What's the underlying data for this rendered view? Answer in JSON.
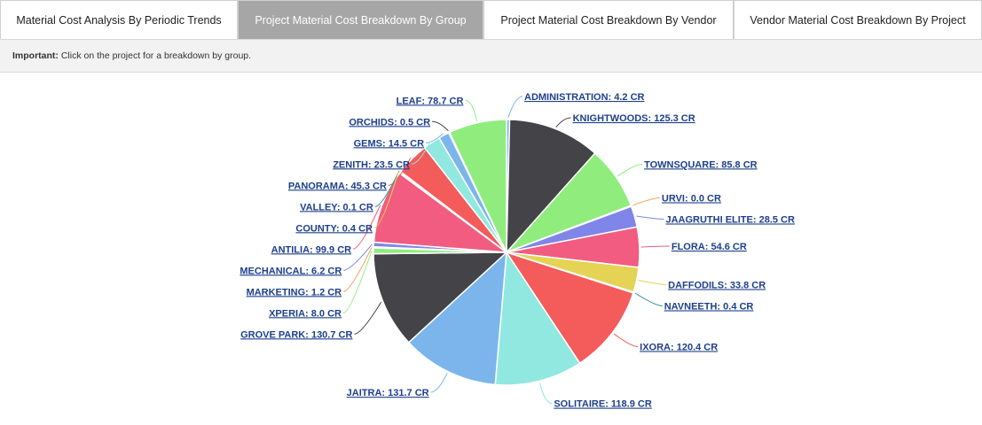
{
  "tabs": [
    {
      "label": "Material Cost Analysis By Periodic Trends",
      "active": false
    },
    {
      "label": "Project Material Cost Breakdown By Group",
      "active": true
    },
    {
      "label": "Project Material Cost Breakdown By Vendor",
      "active": false
    },
    {
      "label": "Vendor Material Cost Breakdown By Project",
      "active": false
    }
  ],
  "notice": {
    "strong": "Important:",
    "text": " Click on the project for a breakdown by group."
  },
  "chart_data": {
    "type": "pie",
    "title": "",
    "unit": "CR",
    "slices": [
      {
        "name": "ADMINISTRATION",
        "value": 4.2,
        "label": "ADMINISTRATION: 4.2 CR",
        "color": "#7cb5ec"
      },
      {
        "name": "KNIGHTWOODS",
        "value": 125.3,
        "label": "KNIGHTWOODS: 125.3 CR",
        "color": "#434348"
      },
      {
        "name": "TOWNSQUARE",
        "value": 85.8,
        "label": "TOWNSQUARE: 85.8 CR",
        "color": "#90ed7d"
      },
      {
        "name": "URVI",
        "value": 0.0,
        "label": "URVI: 0.0 CR",
        "color": "#f7a35c"
      },
      {
        "name": "JAAGRUTHI ELITE",
        "value": 28.5,
        "label": "JAAGRUTHI ELITE: 28.5 CR",
        "color": "#8085e9"
      },
      {
        "name": "FLORA",
        "value": 54.6,
        "label": "FLORA: 54.6 CR",
        "color": "#f15c80"
      },
      {
        "name": "DAFFODILS",
        "value": 33.8,
        "label": "DAFFODILS: 33.8 CR",
        "color": "#e4d354"
      },
      {
        "name": "NAVNEETH",
        "value": 0.4,
        "label": "NAVNEETH: 0.4 CR",
        "color": "#2b908f"
      },
      {
        "name": "IXORA",
        "value": 120.4,
        "label": "IXORA: 120.4 CR",
        "color": "#f45b5b"
      },
      {
        "name": "SOLITAIRE",
        "value": 118.9,
        "label": "SOLITAIRE: 118.9 CR",
        "color": "#91e8e1"
      },
      {
        "name": "JAITRA",
        "value": 131.7,
        "label": "JAITRA: 131.7 CR",
        "color": "#7cb5ec"
      },
      {
        "name": "GROVE PARK",
        "value": 130.7,
        "label": "GROVE PARK: 130.7 CR",
        "color": "#434348"
      },
      {
        "name": "XPERIA",
        "value": 8.0,
        "label": "XPERIA: 8.0 CR",
        "color": "#90ed7d"
      },
      {
        "name": "MARKETING",
        "value": 1.2,
        "label": "MARKETING: 1.2 CR",
        "color": "#f7a35c"
      },
      {
        "name": "MECHANICAL",
        "value": 6.2,
        "label": "MECHANICAL: 6.2 CR",
        "color": "#8085e9"
      },
      {
        "name": "ANTILIA",
        "value": 99.9,
        "label": "ANTILIA: 99.9 CR",
        "color": "#f15c80"
      },
      {
        "name": "COUNTY",
        "value": 0.4,
        "label": "COUNTY: 0.4 CR",
        "color": "#e4d354"
      },
      {
        "name": "VALLEY",
        "value": 0.1,
        "label": "VALLEY: 0.1 CR",
        "color": "#2b908f"
      },
      {
        "name": "PANORAMA",
        "value": 45.3,
        "label": "PANORAMA: 45.3 CR",
        "color": "#f45b5b"
      },
      {
        "name": "ZENITH",
        "value": 23.5,
        "label": "ZENITH: 23.5 CR",
        "color": "#91e8e1"
      },
      {
        "name": "GEMS",
        "value": 14.5,
        "label": "GEMS: 14.5 CR",
        "color": "#7cb5ec"
      },
      {
        "name": "ORCHIDS",
        "value": 0.5,
        "label": "ORCHIDS: 0.5 CR",
        "color": "#434348"
      },
      {
        "name": "LEAF",
        "value": 78.7,
        "label": "LEAF: 78.7 CR",
        "color": "#90ed7d"
      }
    ]
  }
}
